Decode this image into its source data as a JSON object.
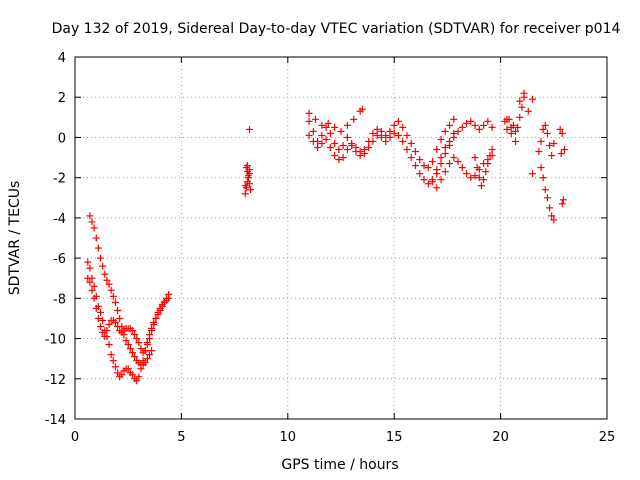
{
  "chart_data": {
    "type": "scatter",
    "title": "Day 132 of 2019, Sidereal Day-to-day VTEC variation (SDTVAR) for receiver p014",
    "xlabel": "GPS time / hours",
    "ylabel": "SDTVAR / TECUs",
    "xlim": [
      0,
      25
    ],
    "ylim": [
      -14,
      4
    ],
    "xticks": [
      0,
      5,
      10,
      15,
      20,
      25
    ],
    "yticks": [
      -14,
      -12,
      -10,
      -8,
      -6,
      -4,
      -2,
      0,
      2,
      4
    ],
    "xtick_labels": [
      "0",
      "5",
      "10",
      "15",
      "20",
      "25"
    ],
    "ytick_labels": [
      "-14",
      "-12",
      "-10",
      "-8",
      "-6",
      "-4",
      "-2",
      "0",
      "2",
      "4"
    ],
    "grid": true,
    "marker": "+",
    "color": "#ff0000",
    "series": [
      {
        "name": "SDTVAR",
        "x": [
          0.6,
          0.7,
          0.8,
          0.9,
          1.0,
          1.1,
          1.2,
          1.3,
          1.4,
          1.5,
          1.6,
          1.7,
          1.8,
          1.9,
          2.0,
          2.1,
          2.2,
          2.3,
          2.4,
          2.5,
          2.6,
          2.7,
          2.8,
          2.9,
          3.0,
          3.1,
          3.2,
          3.3,
          3.4,
          3.5,
          3.6,
          3.7,
          3.8,
          3.9,
          4.0,
          4.1,
          4.2,
          4.3,
          4.4,
          0.6,
          0.7,
          0.8,
          0.9,
          1.0,
          1.1,
          1.2,
          1.3,
          1.4,
          1.5,
          1.6,
          1.7,
          1.8,
          1.9,
          2.0,
          2.1,
          2.2,
          2.3,
          2.4,
          2.5,
          2.6,
          2.7,
          2.8,
          2.9,
          3.0,
          3.1,
          3.2,
          3.3,
          3.4,
          3.5,
          3.6,
          3.7,
          3.8,
          3.9,
          4.0,
          4.1,
          4.2,
          4.3,
          4.4,
          0.7,
          0.8,
          0.9,
          1.0,
          1.1,
          1.2,
          1.3,
          1.4,
          1.5,
          1.6,
          1.7,
          1.8,
          1.9,
          2.0,
          2.1,
          2.2,
          2.3,
          2.4,
          2.5,
          2.6,
          2.7,
          2.8,
          2.9,
          3.0,
          3.1,
          3.2,
          3.3,
          3.4,
          3.5,
          3.6,
          8.0,
          8.05,
          8.1,
          8.15,
          8.2,
          8.25,
          8.05,
          8.1,
          8.15,
          8.2,
          8.0,
          8.1,
          8.2,
          8.2,
          11.0,
          11.2,
          11.4,
          11.6,
          11.8,
          12.0,
          12.2,
          12.4,
          12.6,
          12.8,
          13.0,
          13.2,
          13.4,
          13.6,
          13.8,
          14.0,
          14.2,
          14.4,
          14.6,
          14.8,
          15.0,
          15.2,
          15.4,
          15.6,
          15.8,
          16.0,
          16.2,
          16.4,
          16.6,
          16.8,
          17.0,
          17.2,
          17.4,
          17.6,
          17.8,
          11.0,
          11.2,
          11.4,
          11.6,
          11.8,
          12.0,
          12.2,
          12.4,
          12.6,
          12.8,
          13.0,
          13.2,
          13.4,
          13.6,
          13.8,
          14.0,
          14.2,
          14.4,
          14.6,
          14.8,
          15.0,
          15.2,
          15.4,
          15.6,
          15.8,
          16.0,
          16.2,
          16.4,
          16.6,
          16.8,
          17.0,
          17.2,
          17.4,
          17.6,
          17.8,
          11.0,
          11.3,
          11.6,
          11.9,
          12.2,
          12.5,
          12.8,
          13.1,
          13.4,
          13.5,
          16.8,
          17.0,
          17.2,
          17.4,
          17.6,
          17.8,
          18.0,
          18.2,
          18.4,
          18.6,
          18.8,
          19.0,
          19.2,
          19.4,
          19.6,
          17.0,
          17.2,
          17.4,
          17.6,
          17.8,
          18.0,
          18.2,
          18.4,
          18.6,
          18.8,
          19.0,
          19.2,
          19.4,
          19.6,
          18.8,
          18.9,
          19.0,
          19.1,
          19.2,
          19.3,
          19.4,
          19.5,
          19.6,
          20.2,
          20.3,
          20.4,
          20.5,
          20.6,
          20.7,
          20.8,
          20.9,
          21.0,
          21.1,
          20.3,
          20.5,
          20.7,
          20.9,
          21.1,
          21.3,
          21.5,
          21.8,
          21.9,
          22.0,
          22.1,
          22.2,
          22.3,
          22.4,
          22.5,
          21.9,
          22.0,
          22.1,
          22.2,
          22.3,
          22.4,
          22.5,
          21.5,
          22.8,
          22.9,
          23.0,
          22.85,
          22.95,
          22.9
        ],
        "y": [
          -6.2,
          -6.5,
          -7.0,
          -7.4,
          -7.9,
          -8.4,
          -8.7,
          -9.1,
          -9.6,
          -9.9,
          -10.3,
          -10.8,
          -11.1,
          -11.4,
          -11.7,
          -11.9,
          -11.8,
          -11.6,
          -11.5,
          -11.5,
          -11.7,
          -11.8,
          -12.0,
          -12.1,
          -11.9,
          -11.5,
          -11.1,
          -10.6,
          -10.2,
          -9.8,
          -9.5,
          -9.2,
          -9.0,
          -8.7,
          -8.5,
          -8.3,
          -8.2,
          -8.1,
          -8.0,
          -7.0,
          -7.2,
          -7.6,
          -8.0,
          -8.5,
          -9.0,
          -9.4,
          -9.7,
          -9.9,
          -9.6,
          -9.3,
          -9.1,
          -9.1,
          -9.2,
          -9.4,
          -9.6,
          -9.7,
          -9.6,
          -9.5,
          -9.5,
          -9.5,
          -9.6,
          -9.8,
          -10.0,
          -10.2,
          -10.5,
          -10.7,
          -10.6,
          -10.3,
          -10.0,
          -9.6,
          -9.3,
          -9.0,
          -8.8,
          -8.6,
          -8.4,
          -8.2,
          -8.0,
          -7.8,
          -3.9,
          -4.2,
          -4.5,
          -5.0,
          -5.5,
          -6.0,
          -6.4,
          -6.8,
          -7.1,
          -7.3,
          -7.6,
          -7.9,
          -8.2,
          -8.6,
          -9.0,
          -9.4,
          -9.8,
          -10.1,
          -10.3,
          -10.5,
          -10.7,
          -10.9,
          -11.1,
          -11.2,
          -11.3,
          -11.3,
          -11.2,
          -11.0,
          -10.8,
          -10.6,
          -2.8,
          -2.5,
          -2.2,
          -2.0,
          -2.3,
          -2.6,
          -1.5,
          -1.7,
          -1.9,
          -1.6,
          -2.4,
          -1.4,
          -1.8,
          0.4,
          0.8,
          0.3,
          -0.2,
          0.1,
          0.5,
          0.2,
          -0.3,
          -0.6,
          -0.4,
          0.0,
          -0.3,
          -0.5,
          -0.7,
          -0.6,
          -0.2,
          0.2,
          0.4,
          0.3,
          0.1,
          0.3,
          0.6,
          0.8,
          0.5,
          0.1,
          -0.3,
          -0.7,
          -1.1,
          -1.4,
          -1.5,
          -1.2,
          -0.6,
          -0.1,
          0.3,
          0.6,
          0.9,
          0.1,
          -0.2,
          -0.5,
          -0.3,
          -0.1,
          -0.5,
          -0.9,
          -1.1,
          -1.0,
          -0.6,
          -0.4,
          -0.7,
          -0.9,
          -0.8,
          -0.5,
          -0.2,
          0.1,
          0.0,
          -0.2,
          0.0,
          0.2,
          0.1,
          -0.2,
          -0.6,
          -1.0,
          -1.4,
          -1.8,
          -2.1,
          -2.3,
          -2.1,
          -1.6,
          -1.0,
          -0.5,
          -0.2,
          0.2,
          1.2,
          0.9,
          0.6,
          0.7,
          0.5,
          0.3,
          0.6,
          0.9,
          1.3,
          1.4,
          -2.2,
          -1.8,
          -1.3,
          -0.8,
          -0.4,
          0.0,
          0.3,
          0.5,
          0.7,
          0.8,
          0.6,
          0.4,
          0.6,
          0.8,
          0.5,
          -2.5,
          -2.1,
          -1.7,
          -1.3,
          -1.0,
          -1.2,
          -1.5,
          -1.8,
          -2.0,
          -1.9,
          -1.6,
          -1.3,
          -1.1,
          -0.9,
          -1.0,
          -1.5,
          -2.0,
          -2.4,
          -2.1,
          -1.7,
          -1.3,
          -0.9,
          -0.6,
          0.8,
          0.4,
          0.9,
          0.2,
          0.6,
          -0.2,
          0.5,
          1.0,
          1.5,
          2.0,
          0.9,
          0.5,
          0.3,
          1.8,
          2.2,
          1.3,
          1.9,
          -0.7,
          -0.2,
          0.4,
          0.6,
          0.2,
          -0.4,
          -0.9,
          -0.3,
          -1.5,
          -2.0,
          -2.6,
          -3.0,
          -3.5,
          -3.9,
          -4.1,
          -1.8,
          0.4,
          0.2,
          -0.6,
          -0.8,
          -3.1,
          -3.3
        ]
      }
    ]
  }
}
